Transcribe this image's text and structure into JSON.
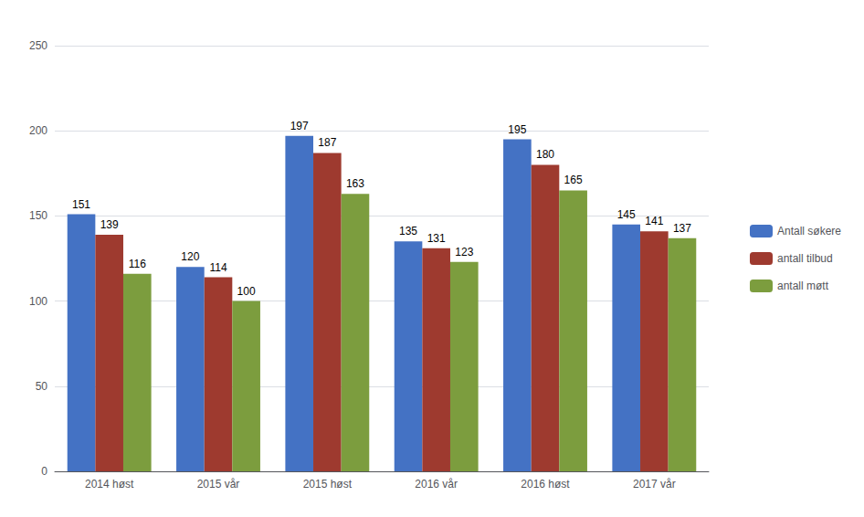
{
  "chart_data": {
    "type": "bar",
    "categories": [
      "2014 høst",
      "2015 vår",
      "2015 høst",
      "2016 vår",
      "2016 høst",
      "2017 vår"
    ],
    "series": [
      {
        "name": "Antall søkere",
        "color": "#4472C4",
        "values": [
          151,
          120,
          197,
          135,
          195,
          145
        ]
      },
      {
        "name": "antall tilbud",
        "color": "#9E3A2F",
        "values": [
          139,
          114,
          187,
          131,
          180,
          141
        ]
      },
      {
        "name": "antall møtt",
        "color": "#7C9D3E",
        "values": [
          116,
          100,
          163,
          123,
          165,
          137
        ]
      }
    ],
    "ylim": [
      0,
      250
    ],
    "yticks": [
      0,
      50,
      100,
      150,
      200,
      250
    ],
    "grid": true,
    "legend": "right",
    "data_labels": true
  }
}
